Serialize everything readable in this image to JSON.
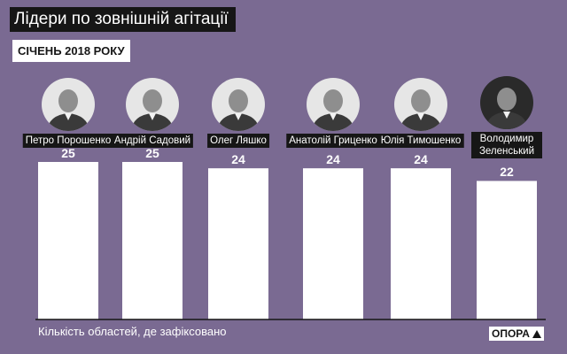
{
  "title": "Лідери по зовнішній агітації",
  "subtitle": "СІЧЕНЬ 2018 РОКУ",
  "footnote": "Кількість областей, де зафіксовано",
  "logo": "ОПОРА",
  "colors": {
    "background": "#7a6a92",
    "bar": "#ffffff",
    "label_background": "#161616"
  },
  "chart_data": {
    "type": "bar",
    "categories": [
      "Петро Порошенко",
      "Андрій Садовий",
      "Олег Ляшко",
      "Анатолій Гриценко",
      "Юлія Тимошенко",
      "Володимир Зеленський"
    ],
    "values": [
      25,
      25,
      24,
      24,
      24,
      22
    ],
    "title": "Лідери по зовнішній агітації",
    "subtitle": "СІЧЕНЬ 2018 РОКУ",
    "xlabel": "",
    "ylabel": "Кількість областей, де зафіксовано",
    "ylim": [
      0,
      25
    ],
    "grid": false,
    "legend": "none"
  }
}
